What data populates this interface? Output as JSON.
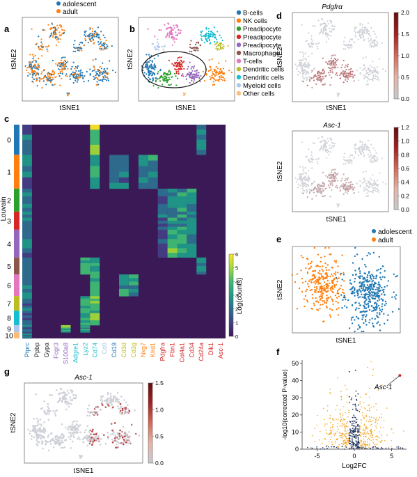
{
  "panels": {
    "a": {
      "letter": "a",
      "legend": [
        {
          "label": "adolescent",
          "color": "#1f77b4"
        },
        {
          "label": "adult",
          "color": "#ff7f0e"
        }
      ],
      "xlabel": "tSNE1",
      "ylabel": "tSNE2"
    },
    "b": {
      "letter": "b",
      "legend": [
        {
          "label": "B-cells",
          "color": "#1f77b4"
        },
        {
          "label": "NK cells",
          "color": "#ff7f0e"
        },
        {
          "label": "Preadipocyte",
          "color": "#2ca02c"
        },
        {
          "label": "Preadipocyte",
          "color": "#d62728"
        },
        {
          "label": "Preadipocyte",
          "color": "#9467bd"
        },
        {
          "label": "Macrophage",
          "color": "#8c564b"
        },
        {
          "label": "T-cells",
          "color": "#e377c2"
        },
        {
          "label": "Dendritic cells",
          "color": "#bcbd22"
        },
        {
          "label": "Dendritic cells",
          "color": "#17becf"
        },
        {
          "label": "Myeloid cells",
          "color": "#aec7e8"
        },
        {
          "label": "Other cells",
          "color": "#ffbb78"
        }
      ],
      "xlabel": "tSNE1",
      "ylabel": "tSNE2"
    },
    "c": {
      "letter": "c",
      "ylabel": "Louvain",
      "colorbar_label": "Log(counts)",
      "colorbar_ticks": [
        "0",
        "1",
        "2",
        "3",
        "4",
        "5",
        "6"
      ]
    },
    "d": {
      "letter": "d",
      "title1": "Pdgfrα",
      "title2": "Asc-1",
      "xlabel": "tSNE1",
      "ylabel": "tSNE2",
      "cb1_ticks": [
        "0.0",
        "0.5",
        "1.0",
        "1.5",
        "2.0"
      ],
      "cb2_ticks": [
        "0.0",
        "0.2",
        "0.4",
        "0.6",
        "0.8",
        "1.0",
        "1.2"
      ]
    },
    "e": {
      "letter": "e",
      "legend": [
        {
          "label": "adolescent",
          "color": "#1f77b4"
        },
        {
          "label": "adult",
          "color": "#ff7f0e"
        }
      ],
      "xlabel": "tSNE1",
      "ylabel": "tSNE2"
    },
    "f": {
      "letter": "f",
      "annotation": "Asc-1"
    },
    "g": {
      "letter": "g",
      "title": "Asc-1",
      "xlabel": "tSNE1",
      "ylabel": "tSNE2",
      "cb_ticks": [
        "0.0",
        "0.5",
        "1.0",
        "1.5"
      ]
    }
  },
  "chart_data": [
    {
      "panel": "c",
      "type": "heatmap",
      "ylabel": "Louvain",
      "row_clusters": [
        "0",
        "1",
        "2",
        "3",
        "4",
        "5",
        "6",
        "7",
        "8",
        "9",
        "10"
      ],
      "cluster_colors": [
        "#1f77b4",
        "#ff7f0e",
        "#2ca02c",
        "#d62728",
        "#9467bd",
        "#8c564b",
        "#e377c2",
        "#bcbd22",
        "#17becf",
        "#aec7e8",
        "#ffbb78"
      ],
      "genes": [
        {
          "name": "Ptprc",
          "color": "#1f77b4"
        },
        {
          "name": "Ppbp",
          "color": "#222222"
        },
        {
          "name": "Gypa",
          "color": "#222222"
        },
        {
          "name": "Fcgr3",
          "color": "#9467bd"
        },
        {
          "name": "S100a8",
          "color": "#9467bd"
        },
        {
          "name": "Adgre1",
          "color": "#17becf"
        },
        {
          "name": "Lyz2",
          "color": "#17becf"
        },
        {
          "name": "Cd74",
          "color": "#17becf"
        },
        {
          "name": "Cd8",
          "color": "#aec7e8"
        },
        {
          "name": "Cd19",
          "color": "#1f77b4"
        },
        {
          "name": "Cd3d",
          "color": "#bcbd22"
        },
        {
          "name": "Cd3g",
          "color": "#bcbd22"
        },
        {
          "name": "Nkg7",
          "color": "#ff7f0e"
        },
        {
          "name": "Klrd1",
          "color": "#ff7f0e"
        },
        {
          "name": "Pdgfra",
          "color": "#d62728"
        },
        {
          "name": "Fbn1",
          "color": "#d62728"
        },
        {
          "name": "Col4a1",
          "color": "#d62728"
        },
        {
          "name": "Cd34",
          "color": "#d62728"
        },
        {
          "name": "Cd24a",
          "color": "#d62728"
        },
        {
          "name": "Dlk1",
          "color": "#d62728"
        },
        {
          "name": "Asc-1",
          "color": "#d62728"
        }
      ],
      "colorbar_label": "Log(counts)",
      "colorbar_range": [
        0,
        6
      ]
    },
    {
      "panel": "f",
      "type": "scatter",
      "xlabel": "Log2FC",
      "ylabel": "-log10(corrected P-value)",
      "xlim": [
        -7,
        7
      ],
      "ylim": [
        0,
        52
      ],
      "xticks": [
        -5,
        0,
        5
      ],
      "yticks": [
        0,
        10,
        20,
        30,
        40,
        50
      ],
      "highlight": {
        "label": "Asc-1",
        "x": 6.1,
        "y": 43
      }
    }
  ]
}
